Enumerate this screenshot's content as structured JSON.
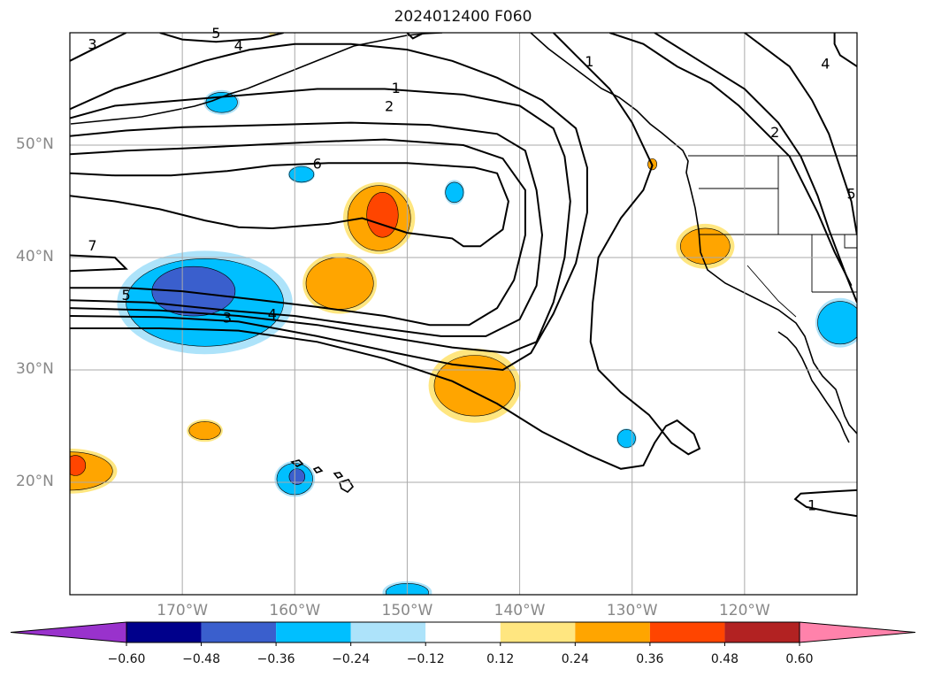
{
  "title": "2024012400 F060",
  "lat_ticks": [
    {
      "label": "50°N",
      "lat": 50
    },
    {
      "label": "40°N",
      "lat": 40
    },
    {
      "label": "30°N",
      "lat": 30
    },
    {
      "label": "20°N",
      "lat": 20
    }
  ],
  "lon_ticks": [
    {
      "label": "170°W",
      "lon": -170
    },
    {
      "label": "160°W",
      "lon": -160
    },
    {
      "label": "150°W",
      "lon": -150
    },
    {
      "label": "140°W",
      "lon": -140
    },
    {
      "label": "130°W",
      "lon": -130
    },
    {
      "label": "120°W",
      "lon": -120
    }
  ],
  "extent": {
    "lon_min": -180,
    "lon_max": -110,
    "lat_min": 10,
    "lat_max": 60
  },
  "colorbar": {
    "colors": [
      "#9932CC",
      "#00008B",
      "#3A5FCD",
      "#00BFFF",
      "#ADE3FA",
      "#FFFFFF",
      "#FFE680",
      "#FFA500",
      "#FF4500",
      "#B22222",
      "#FF82AB"
    ],
    "tick_labels": [
      "−0.60",
      "−0.48",
      "−0.36",
      "−0.24",
      "−0.12",
      "0.12",
      "0.24",
      "0.36",
      "0.48",
      "0.60"
    ]
  },
  "contour_labels": [
    {
      "text": "1",
      "lon": -151,
      "lat": 55.1
    },
    {
      "text": "2",
      "lon": -151.6,
      "lat": 53.5
    },
    {
      "text": "6",
      "lon": -158,
      "lat": 48.4
    },
    {
      "text": "7",
      "lon": -178,
      "lat": 41.1
    },
    {
      "text": "5",
      "lon": -175,
      "lat": 36.7
    },
    {
      "text": "3",
      "lon": -166,
      "lat": 34.7
    },
    {
      "text": "4",
      "lon": -162,
      "lat": 35
    },
    {
      "text": "1",
      "lon": -133.8,
      "lat": 57.5
    },
    {
      "text": "2",
      "lon": -117.3,
      "lat": 51.2
    },
    {
      "text": "3",
      "lon": -178,
      "lat": 59
    },
    {
      "text": "4",
      "lon": -165,
      "lat": 58.9
    },
    {
      "text": "5",
      "lon": -167,
      "lat": 60
    },
    {
      "text": "1",
      "lon": -114,
      "lat": 18
    },
    {
      "text": "4",
      "lon": -112.8,
      "lat": 57.3
    },
    {
      "text": "5",
      "lon": -110.5,
      "lat": 45.7
    }
  ],
  "shading_regions": [
    {
      "color": "#ADE3FA",
      "cx": -168,
      "cy": 36,
      "rx": 7.8,
      "ry": 4.6
    },
    {
      "color": "#00BFFF",
      "cx": -168,
      "cy": 36,
      "rx": 7.0,
      "ry": 3.9
    },
    {
      "color": "#3A5FCD",
      "cx": -169,
      "cy": 37,
      "rx": 3.7,
      "ry": 2.2
    },
    {
      "color": "#FFE680",
      "cx": -152.5,
      "cy": 43.5,
      "rx": 3.2,
      "ry": 3.2
    },
    {
      "color": "#FFA500",
      "cx": -152.5,
      "cy": 43.5,
      "rx": 2.8,
      "ry": 2.9
    },
    {
      "color": "#FF4500",
      "cx": -152.2,
      "cy": 43.8,
      "rx": 1.4,
      "ry": 2.0
    },
    {
      "color": "#FFE680",
      "cx": -156,
      "cy": 37.7,
      "rx": 3.3,
      "ry": 2.7
    },
    {
      "color": "#FFA500",
      "cx": -156,
      "cy": 37.7,
      "rx": 3.0,
      "ry": 2.3
    },
    {
      "color": "#FFE680",
      "cx": -144,
      "cy": 28.6,
      "rx": 4.1,
      "ry": 3.3
    },
    {
      "color": "#FFA500",
      "cx": -144,
      "cy": 28.6,
      "rx": 3.6,
      "ry": 2.7
    },
    {
      "color": "#FFE680",
      "cx": -180,
      "cy": 21,
      "rx": 4.2,
      "ry": 2.0
    },
    {
      "color": "#FFA500",
      "cx": -180,
      "cy": 21,
      "rx": 3.8,
      "ry": 1.7
    },
    {
      "color": "#FF4500",
      "cx": -179.5,
      "cy": 21.5,
      "rx": 0.9,
      "ry": 0.9
    },
    {
      "color": "#FFE680",
      "cx": -168,
      "cy": 24.6,
      "rx": 1.6,
      "ry": 1.0
    },
    {
      "color": "#FFA500",
      "cx": -168,
      "cy": 24.6,
      "rx": 1.4,
      "ry": 0.8
    },
    {
      "color": "#FFE680",
      "cx": -123.5,
      "cy": 41,
      "rx": 2.6,
      "ry": 2.0
    },
    {
      "color": "#FFA500",
      "cx": -123.5,
      "cy": 41,
      "rx": 2.2,
      "ry": 1.6
    },
    {
      "color": "#FFA500",
      "cx": -128.2,
      "cy": 48.3,
      "rx": 0.4,
      "ry": 0.5
    },
    {
      "color": "#ADE3FA",
      "cx": -160,
      "cy": 20.3,
      "rx": 1.8,
      "ry": 1.6
    },
    {
      "color": "#00BFFF",
      "cx": -160,
      "cy": 20.3,
      "rx": 1.6,
      "ry": 1.4
    },
    {
      "color": "#3A5FCD",
      "cx": -159.8,
      "cy": 20.5,
      "rx": 0.7,
      "ry": 0.7
    },
    {
      "color": "#ADE3FA",
      "cx": -166.5,
      "cy": 53.8,
      "rx": 1.6,
      "ry": 1.1
    },
    {
      "color": "#00BFFF",
      "cx": -166.5,
      "cy": 53.8,
      "rx": 1.4,
      "ry": 0.9
    },
    {
      "color": "#ADE3FA",
      "cx": -159.4,
      "cy": 47.4,
      "rx": 1.2,
      "ry": 0.8
    },
    {
      "color": "#00BFFF",
      "cx": -159.4,
      "cy": 47.4,
      "rx": 1.1,
      "ry": 0.7
    },
    {
      "color": "#ADE3FA",
      "cx": -145.8,
      "cy": 45.8,
      "rx": 0.9,
      "ry": 1.1
    },
    {
      "color": "#00BFFF",
      "cx": -145.8,
      "cy": 45.8,
      "rx": 0.8,
      "ry": 0.9
    },
    {
      "color": "#ADE3FA",
      "cx": -130.5,
      "cy": 23.9,
      "rx": 0.9,
      "ry": 0.9
    },
    {
      "color": "#00BFFF",
      "cx": -130.5,
      "cy": 23.9,
      "rx": 0.8,
      "ry": 0.8
    },
    {
      "color": "#ADE3FA",
      "cx": -111.5,
      "cy": 34.2,
      "rx": 2.2,
      "ry": 2.2
    },
    {
      "color": "#00BFFF",
      "cx": -111.5,
      "cy": 34.2,
      "rx": 2.0,
      "ry": 1.9
    },
    {
      "color": "#ADE3FA",
      "cx": -150,
      "cy": 10.2,
      "rx": 2.2,
      "ry": 1.0
    },
    {
      "color": "#00BFFF",
      "cx": -150,
      "cy": 10.2,
      "rx": 1.9,
      "ry": 0.8
    },
    {
      "color": "#FFE680",
      "cx": -162,
      "cy": 60,
      "rx": 0.3,
      "ry": 0.3
    }
  ],
  "contours": [
    {
      "pts": [
        [
          -180,
          40.2
        ],
        [
          -176,
          40
        ],
        [
          -175,
          39
        ],
        [
          -180,
          38.8
        ]
      ]
    },
    {
      "pts": [
        [
          -180,
          45.5
        ],
        [
          -176,
          45
        ],
        [
          -172,
          44.3
        ],
        [
          -168,
          43.3
        ],
        [
          -165,
          42.7
        ],
        [
          -162,
          42.6
        ],
        [
          -157,
          43
        ],
        [
          -154,
          43.5
        ],
        [
          -150,
          42.2
        ],
        [
          -146,
          41.7
        ],
        [
          -145,
          41
        ],
        [
          -143.5,
          41
        ],
        [
          -141.5,
          42.5
        ],
        [
          -141,
          45
        ],
        [
          -142,
          47.5
        ],
        [
          -144,
          48
        ],
        [
          -150,
          48.4
        ],
        [
          -157,
          48.4
        ],
        [
          -162,
          48.2
        ],
        [
          -166,
          47.7
        ],
        [
          -171,
          47.3
        ],
        [
          -176,
          47.3
        ],
        [
          -180,
          47.5
        ]
      ]
    },
    {
      "pts": [
        [
          -180,
          49.2
        ],
        [
          -175,
          49.5
        ],
        [
          -170,
          49.7
        ],
        [
          -164,
          50
        ],
        [
          -158,
          50.3
        ],
        [
          -152,
          50.5
        ],
        [
          -145,
          50
        ],
        [
          -141.5,
          48.8
        ],
        [
          -139.5,
          46
        ],
        [
          -139.5,
          42
        ],
        [
          -140.5,
          38
        ],
        [
          -142,
          35.5
        ],
        [
          -144.5,
          34
        ],
        [
          -148,
          34
        ],
        [
          -152,
          34.8
        ],
        [
          -158,
          35.6
        ],
        [
          -163,
          36.2
        ],
        [
          -170,
          37
        ],
        [
          -175,
          37.3
        ],
        [
          -180,
          37.3
        ]
      ]
    },
    {
      "pts": [
        [
          -180,
          50.8
        ],
        [
          -175,
          51.3
        ],
        [
          -170,
          51.6
        ],
        [
          -162,
          51.8
        ],
        [
          -155,
          52
        ],
        [
          -148,
          51.8
        ],
        [
          -142,
          51
        ],
        [
          -139.5,
          49.5
        ],
        [
          -138.5,
          46
        ],
        [
          -138,
          42
        ],
        [
          -138.5,
          37.5
        ],
        [
          -140,
          34.5
        ],
        [
          -143,
          33
        ],
        [
          -147,
          33
        ],
        [
          -153,
          33.8
        ],
        [
          -160,
          34.8
        ],
        [
          -166,
          35.3
        ],
        [
          -173,
          36
        ],
        [
          -180,
          36.2
        ]
      ]
    },
    {
      "pts": [
        [
          -180,
          52.4
        ],
        [
          -176,
          53.5
        ],
        [
          -170,
          54
        ],
        [
          -164,
          54.5
        ],
        [
          -158,
          55
        ],
        [
          -152,
          55
        ],
        [
          -145,
          54.5
        ],
        [
          -140,
          53.5
        ],
        [
          -137,
          51.5
        ],
        [
          -136,
          49
        ],
        [
          -135.5,
          45
        ],
        [
          -136,
          40
        ],
        [
          -137,
          36
        ],
        [
          -138.5,
          32.5
        ],
        [
          -141,
          31.5
        ],
        [
          -146,
          32
        ],
        [
          -151,
          32.8
        ],
        [
          -158,
          34
        ],
        [
          -165,
          34.8
        ],
        [
          -172,
          35.3
        ],
        [
          -180,
          35.5
        ]
      ]
    },
    {
      "pts": [
        [
          -180,
          53.2
        ],
        [
          -176,
          55
        ],
        [
          -172,
          56.2
        ],
        [
          -168,
          57.5
        ],
        [
          -164,
          58.5
        ],
        [
          -160,
          59
        ],
        [
          -155,
          59
        ],
        [
          -150,
          58.5
        ],
        [
          -146,
          57.5
        ],
        [
          -142,
          56
        ],
        [
          -138,
          54
        ],
        [
          -135,
          51.5
        ],
        [
          -134,
          48
        ],
        [
          -134,
          44
        ],
        [
          -135,
          39.5
        ],
        [
          -137,
          35
        ],
        [
          -139,
          31.5
        ],
        [
          -141.5,
          30
        ],
        [
          -146,
          30.5
        ],
        [
          -151,
          31.5
        ],
        [
          -158,
          33
        ],
        [
          -165,
          34.3
        ],
        [
          -172,
          34.7
        ],
        [
          -180,
          34.8
        ]
      ]
    },
    {
      "pts": [
        [
          -180,
          33.7
        ],
        [
          -172,
          33.7
        ],
        [
          -165,
          33.5
        ],
        [
          -158,
          32.5
        ],
        [
          -152,
          31
        ],
        [
          -146,
          29
        ],
        [
          -142,
          27
        ],
        [
          -138,
          24.5
        ],
        [
          -134,
          22.5
        ],
        [
          -131,
          21.2
        ],
        [
          -129,
          21.5
        ],
        [
          -128,
          23.5
        ],
        [
          -127,
          25
        ],
        [
          -126,
          25.5
        ],
        [
          -124.5,
          24.3
        ],
        [
          -124,
          23
        ],
        [
          -125,
          22.5
        ],
        [
          -126.5,
          23.5
        ],
        [
          -128.5,
          26
        ],
        [
          -131,
          28
        ],
        [
          -133,
          30
        ],
        [
          -133.7,
          32.5
        ],
        [
          -133.5,
          36
        ],
        [
          -133,
          40
        ],
        [
          -131,
          43.5
        ],
        [
          -129,
          46
        ],
        [
          -128.2,
          48.2
        ],
        [
          -130,
          52
        ],
        [
          -132,
          55
        ],
        [
          -135,
          58
        ],
        [
          -137,
          60
        ]
      ]
    },
    {
      "pts": [
        [
          -132,
          60
        ],
        [
          -129,
          59
        ],
        [
          -126,
          57
        ],
        [
          -123,
          55.5
        ],
        [
          -120.5,
          53.5
        ],
        [
          -118,
          51
        ],
        [
          -116,
          49
        ],
        [
          -114.5,
          46
        ],
        [
          -113.5,
          44
        ],
        [
          -112,
          40.5
        ],
        [
          -110.5,
          37.5
        ]
      ]
    },
    {
      "pts": [
        [
          -128,
          60
        ],
        [
          -124,
          57.5
        ],
        [
          -120,
          55
        ],
        [
          -117,
          52
        ],
        [
          -115,
          49
        ],
        [
          -113.5,
          45.5
        ],
        [
          -112.5,
          42.5
        ],
        [
          -111,
          38.5
        ],
        [
          -110,
          36
        ]
      ]
    },
    {
      "pts": [
        [
          -120,
          60
        ],
        [
          -116,
          57
        ],
        [
          -114,
          54
        ],
        [
          -112.5,
          51
        ],
        [
          -111.5,
          48
        ],
        [
          -110.5,
          45
        ],
        [
          -110,
          42
        ]
      ]
    },
    {
      "pts": [
        [
          -110,
          57
        ],
        [
          -111.5,
          58
        ],
        [
          -112,
          59
        ],
        [
          -112,
          60
        ]
      ]
    },
    {
      "pts": [
        [
          -110,
          17
        ],
        [
          -112,
          17.3
        ],
        [
          -114.5,
          17.8
        ],
        [
          -115.5,
          18.5
        ],
        [
          -115,
          19
        ],
        [
          -112,
          19.2
        ],
        [
          -110,
          19.3
        ]
      ]
    },
    {
      "pts": [
        [
          -172,
          60
        ],
        [
          -170,
          59.4
        ],
        [
          -167,
          59.2
        ],
        [
          -163,
          59.5
        ],
        [
          -161,
          60
        ]
      ]
    },
    {
      "pts": [
        [
          -180,
          57.5
        ],
        [
          -177,
          59
        ],
        [
          -175,
          60
        ]
      ]
    },
    {
      "pts": [
        [
          -150,
          60
        ],
        [
          -149.5,
          59.5
        ],
        [
          -148.5,
          60
        ]
      ]
    }
  ],
  "coastlines": [
    {
      "pts": [
        [
          -110,
          10
        ],
        [
          -110,
          10
        ]
      ]
    }
  ]
}
